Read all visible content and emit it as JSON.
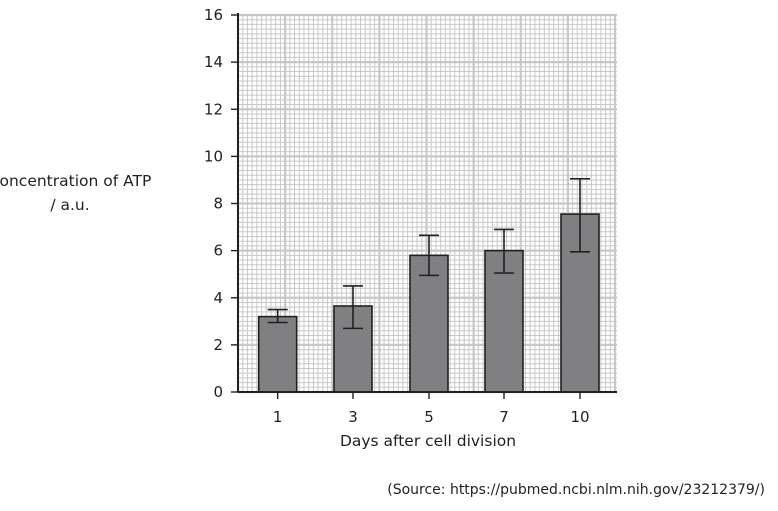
{
  "chart_data": {
    "type": "bar",
    "categories": [
      "1",
      "3",
      "5",
      "7",
      "10"
    ],
    "values": [
      3.2,
      3.65,
      5.8,
      6.0,
      7.55
    ],
    "error_upper": [
      3.5,
      4.5,
      6.65,
      6.9,
      9.05
    ],
    "error_lower": [
      2.95,
      2.7,
      4.95,
      5.05,
      5.95
    ],
    "ylabel_line1": "Concentration of ATP",
    "ylabel_line2": "/ a.u.",
    "xlabel": "Days after cell division",
    "ylim": [
      0,
      16
    ],
    "yticks": [
      0,
      2,
      4,
      6,
      8,
      10,
      12,
      14,
      16
    ],
    "grid": true,
    "bar_color": "#808083",
    "source": "(Source: https://pubmed.ncbi.nlm.nih.gov/23212379/)"
  }
}
